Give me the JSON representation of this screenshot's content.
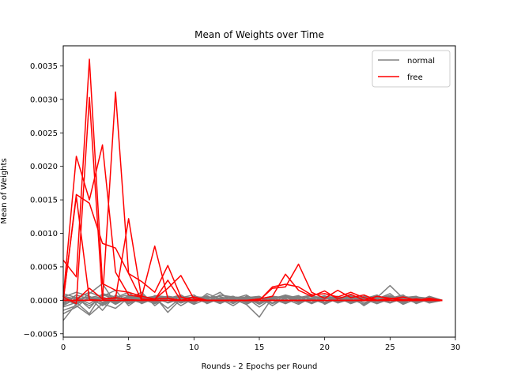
{
  "chart_data": {
    "type": "line",
    "title": "Mean of Weights over Time",
    "xlabel": "Rounds - 2 Epochs per Round",
    "ylabel": "Mean of Weights",
    "xlim": [
      0,
      30
    ],
    "ylim": [
      -0.00055,
      0.0038
    ],
    "xticks": [
      0,
      5,
      10,
      15,
      20,
      25,
      30
    ],
    "yticks": [
      -0.0005,
      0.0,
      0.0005,
      0.001,
      0.0015,
      0.002,
      0.0025,
      0.003,
      0.0035
    ],
    "ytick_labels": [
      "−0.0005",
      "0.0000",
      "0.0005",
      "0.0010",
      "0.0015",
      "0.0020",
      "0.0025",
      "0.0030",
      "0.0035"
    ],
    "grid": false,
    "legend_position": "top-right",
    "legend": [
      {
        "label": "normal",
        "color": "#808080"
      },
      {
        "label": "free",
        "color": "#ff0000"
      }
    ],
    "x": [
      0,
      1,
      2,
      3,
      4,
      5,
      6,
      7,
      8,
      9,
      10,
      11,
      12,
      13,
      14,
      15,
      16,
      17,
      18,
      19,
      20,
      21,
      22,
      23,
      24,
      25,
      26,
      27,
      28,
      29
    ],
    "series": [
      {
        "name": "normal",
        "color": "#808080",
        "values": [
          1e-05,
          -5e-05,
          3e-05,
          2e-05,
          -4e-05,
          6e-05,
          1e-05,
          -3e-05,
          4e-05,
          -2e-05,
          1e-05,
          5e-05,
          -2e-05,
          3e-05,
          1e-05,
          -4e-05,
          2e-05,
          6e-05,
          -3e-05,
          2e-05,
          4e-05,
          -2e-05,
          3e-05,
          -1e-05,
          5e-05,
          2e-05,
          -3e-05,
          4e-05,
          1e-05,
          0.0
        ]
      },
      {
        "name": "normal",
        "color": "#808080",
        "values": [
          -0.0001,
          -3e-05,
          -0.0002,
          0.0001,
          5e-05,
          -2e-05,
          8e-05,
          -4e-05,
          3e-05,
          6e-05,
          -5e-05,
          0.0001,
          2e-05,
          -8e-05,
          4e-05,
          -0.0001,
          3e-05,
          7e-05,
          -2e-05,
          9e-05,
          -6e-05,
          3e-05,
          5e-05,
          -4e-05,
          2e-05,
          0.0001,
          -5e-05,
          6e-05,
          -2e-05,
          0.0
        ]
      },
      {
        "name": "normal",
        "color": "#808080",
        "values": [
          -0.0003,
          -5e-05,
          0.0001,
          0.00025,
          -5e-05,
          3e-05,
          0.00012,
          -8e-05,
          6e-05,
          2e-05,
          4e-05,
          -3e-05,
          8e-05,
          5e-05,
          -4e-05,
          2e-05,
          6e-05,
          -5e-05,
          4e-05,
          8e-05,
          -3e-05,
          5e-05,
          2e-05,
          -6e-05,
          3e-05,
          7e-05,
          -2e-05,
          4e-05,
          3e-05,
          0.0
        ]
      },
      {
        "name": "normal",
        "color": "#808080",
        "values": [
          0.0001,
          4e-05,
          -5e-05,
          6e-05,
          0.00015,
          -8e-05,
          5e-05,
          3e-05,
          -0.00012,
          4e-05,
          8e-05,
          -5e-05,
          3e-05,
          6e-05,
          -2e-05,
          4e-05,
          -5e-05,
          3e-05,
          7e-05,
          -4e-05,
          2e-05,
          5e-05,
          -3e-05,
          6e-05,
          -4e-05,
          3e-05,
          8e-05,
          -5e-05,
          2e-05,
          0.0
        ]
      },
      {
        "name": "normal",
        "color": "#808080",
        "values": [
          -5e-05,
          8e-05,
          2e-05,
          -6e-05,
          4e-05,
          0.00012,
          -4e-05,
          7e-05,
          5e-05,
          -8e-05,
          3e-05,
          6e-05,
          -4e-05,
          2e-05,
          8e-05,
          -3e-05,
          5e-05,
          2e-05,
          -6e-05,
          4e-05,
          6e-05,
          -2e-05,
          4e-05,
          8e-05,
          -5e-05,
          2e-05,
          6e-05,
          -3e-05,
          5e-05,
          0.0
        ]
      },
      {
        "name": "normal",
        "color": "#808080",
        "values": [
          3e-05,
          -2e-05,
          6e-05,
          -4e-05,
          2e-05,
          5e-05,
          8e-05,
          -2e-05,
          4e-05,
          3e-05,
          -6e-05,
          2e-05,
          0.00012,
          -4e-05,
          3e-05,
          5e-05,
          -8e-05,
          4e-05,
          2e-05,
          -3e-05,
          6e-05,
          4e-05,
          -5e-05,
          2e-05,
          8e-05,
          -3e-05,
          4e-05,
          6e-05,
          -2e-05,
          0.0
        ]
      },
      {
        "name": "normal",
        "color": "#808080",
        "values": [
          -0.0002,
          -0.0001,
          5e-05,
          -0.00015,
          8e-05,
          -5e-05,
          3e-05,
          6e-05,
          -4e-05,
          2e-05,
          5e-05,
          -3e-05,
          4e-05,
          2e-05,
          -6e-05,
          3e-05,
          4e-05,
          -2e-05,
          6e-05,
          -5e-05,
          3e-05,
          2e-05,
          7e-05,
          -4e-05,
          3e-05,
          5e-05,
          -6e-05,
          2e-05,
          4e-05,
          0.0
        ]
      },
      {
        "name": "normal",
        "color": "#808080",
        "values": [
          6e-05,
          2e-05,
          -8e-05,
          4e-05,
          -3e-05,
          7e-05,
          -2e-05,
          5e-05,
          3e-05,
          -4e-05,
          6e-05,
          2e-05,
          -3e-05,
          5e-05,
          4e-05,
          -6e-05,
          3e-05,
          5e-05,
          -4e-05,
          2e-05,
          7e-05,
          -3e-05,
          4e-05,
          2e-05,
          -5e-05,
          6e-05,
          3e-05,
          -2e-05,
          5e-05,
          0.0
        ]
      },
      {
        "name": "normal",
        "color": "#808080",
        "values": [
          -8e-05,
          3e-05,
          0.00012,
          5e-05,
          -6e-05,
          4e-05,
          2e-05,
          -5e-05,
          6e-05,
          3e-05,
          -2e-05,
          7e-05,
          -4e-05,
          3e-05,
          5e-05,
          -3e-05,
          2e-05,
          8e-05,
          3e-05,
          -5e-05,
          4e-05,
          6e-05,
          -2e-05,
          3e-05,
          5e-05,
          -4e-05,
          3e-05,
          2e-05,
          -3e-05,
          0.0
        ]
      },
      {
        "name": "normal",
        "color": "#808080",
        "values": [
          2e-05,
          -6e-05,
          4e-05,
          8e-05,
          3e-05,
          -4e-05,
          6e-05,
          2e-05,
          -3e-05,
          5e-05,
          4e-05,
          -2e-05,
          3e-05,
          -5e-05,
          6e-05,
          2e-05,
          4e-05,
          -3e-05,
          5e-05,
          3e-05,
          -4e-05,
          2e-05,
          6e-05,
          4e-05,
          -2e-05,
          3e-05,
          5e-05,
          4e-05,
          -4e-05,
          0.0
        ]
      },
      {
        "name": "normal",
        "color": "#808080",
        "values": [
          -0.00015,
          -8e-05,
          -0.00022,
          -5e-05,
          -0.00012,
          4e-05,
          -3e-05,
          6e-05,
          -0.00018,
          2e-05,
          5e-05,
          -4e-05,
          8e-05,
          3e-05,
          -6e-05,
          -0.00025,
          4e-05,
          -3e-05,
          6e-05,
          2e-05,
          -5e-05,
          3e-05,
          7e-05,
          -8e-05,
          4e-05,
          0.00022,
          3e-05,
          -4e-05,
          5e-05,
          0.0
        ]
      },
      {
        "name": "normal",
        "color": "#808080",
        "values": [
          5e-05,
          0.00012,
          6e-05,
          -3e-05,
          4e-05,
          8e-05,
          -5e-05,
          3e-05,
          6e-05,
          -4e-05,
          2e-05,
          5e-05,
          3e-05,
          -2e-05,
          4e-05,
          6e-05,
          -4e-05,
          3e-05,
          5e-05,
          2e-05,
          -3e-05,
          4e-05,
          6e-05,
          2e-05,
          -5e-05,
          3e-05,
          4e-05,
          -2e-05,
          6e-05,
          0.0
        ]
      },
      {
        "name": "normal",
        "color": "#808080",
        "values": [
          -3e-05,
          5e-05,
          -0.00012,
          0.0001,
          -2e-05,
          6e-05,
          4e-05,
          -5e-05,
          3e-05,
          8e-05,
          -3e-05,
          4e-05,
          6e-05,
          -2e-05,
          3e-05,
          5e-05,
          -4e-05,
          7e-05,
          2e-05,
          -3e-05,
          5e-05,
          3e-05,
          -4e-05,
          6e-05,
          2e-05,
          -3e-05,
          4e-05,
          5e-05,
          -2e-05,
          0.0
        ]
      },
      {
        "name": "normal",
        "color": "#808080",
        "values": [
          8e-05,
          -4e-05,
          3e-05,
          5e-05,
          -2e-05,
          4e-05,
          6e-05,
          -3e-05,
          2e-05,
          5e-05,
          3e-05,
          -4e-05,
          2e-05,
          6e-05,
          -3e-05,
          4e-05,
          2e-05,
          -5e-05,
          3e-05,
          6e-05,
          4e-05,
          -2e-05,
          3e-05,
          5e-05,
          2e-05,
          -4e-05,
          6e-05,
          3e-05,
          2e-05,
          0.0
        ]
      },
      {
        "name": "normal",
        "color": "#808080",
        "values": [
          -6e-05,
          2e-05,
          5e-05,
          -8e-05,
          3e-05,
          2e-05,
          -4e-05,
          5e-05,
          4e-05,
          -2e-05,
          6e-05,
          3e-05,
          -5e-05,
          4e-05,
          2e-05,
          -3e-05,
          6e-05,
          4e-05,
          -2e-05,
          3e-05,
          5e-05,
          -4e-05,
          2e-05,
          4e-05,
          6e-05,
          -3e-05,
          2e-05,
          5e-05,
          3e-05,
          0.0
        ]
      },
      {
        "name": "free",
        "color": "#ff0000",
        "values": [
          0.0006,
          0.00035,
          0.0036,
          0.00025,
          0.00015,
          0.00012,
          6e-05,
          2e-05,
          3e-05,
          0.0,
          0.0,
          0.0,
          0.0,
          0.0,
          0.0,
          0.0,
          0.0,
          0.0,
          0.0,
          0.0,
          0.0,
          0.0,
          0.0,
          0.0,
          0.0,
          0.0,
          0.0,
          0.0,
          0.0,
          0.0
        ]
      },
      {
        "name": "free",
        "color": "#ff0000",
        "values": [
          5e-05,
          0.00215,
          0.0015,
          0.00232,
          0.00042,
          8e-05,
          5e-05,
          0.00081,
          3e-05,
          0.0,
          0.0,
          0.0,
          0.0,
          0.0,
          0.0,
          0.0,
          0.0,
          0.0,
          0.0,
          0.0,
          0.0,
          0.0,
          0.0,
          0.0,
          0.0,
          0.0,
          0.0,
          0.0,
          0.0,
          0.0
        ]
      },
      {
        "name": "free",
        "color": "#ff0000",
        "values": [
          0.0,
          0.00158,
          0.00145,
          0.00085,
          0.00078,
          0.0004,
          0.00028,
          0.00012,
          0.00052,
          5e-05,
          0.0,
          0.0,
          0.0,
          0.0,
          0.0,
          0.0,
          0.0,
          0.0,
          0.0,
          0.0,
          0.0,
          0.0,
          0.0,
          0.0,
          0.0,
          0.0,
          0.0,
          0.0,
          0.0,
          0.0
        ]
      },
      {
        "name": "free",
        "color": "#ff0000",
        "values": [
          0.0,
          0.00155,
          1e-05,
          0.0,
          0.00311,
          0.0004,
          0.0,
          0.0,
          0.0,
          0.0,
          0.0,
          0.0,
          0.0,
          0.0,
          0.0,
          0.0,
          0.0,
          0.0,
          0.0,
          0.0,
          0.0,
          0.0,
          0.0,
          0.0,
          0.0,
          0.0,
          0.0,
          0.0,
          0.0,
          0.0
        ]
      },
      {
        "name": "free",
        "color": "#ff0000",
        "values": [
          5e-05,
          -5e-05,
          0.00303,
          2e-05,
          3e-05,
          0.00122,
          2e-05,
          1e-05,
          0.0003,
          0.0,
          5e-05,
          0.0,
          0.0,
          0.0,
          0.0,
          0.0,
          0.0,
          0.0,
          0.0,
          0.0,
          0.0,
          0.0,
          0.0,
          0.0,
          0.0,
          0.0,
          0.0,
          0.0,
          0.0,
          0.0
        ]
      },
      {
        "name": "free",
        "color": "#ff0000",
        "values": [
          0.0,
          0.0,
          0.00018,
          2e-05,
          4e-05,
          1e-05,
          0.0,
          2e-05,
          0.00018,
          0.00037,
          2e-05,
          0.0,
          0.0,
          0.0,
          0.0,
          0.0,
          0.0,
          0.0,
          0.0,
          0.0,
          0.0,
          0.0,
          0.0,
          0.0,
          0.0,
          0.0,
          0.0,
          0.0,
          0.0,
          0.0
        ]
      },
      {
        "name": "free",
        "color": "#ff0000",
        "values": [
          0.0,
          0.0,
          0.0,
          0.0,
          0.0,
          0.0,
          0.0,
          0.0,
          0.0,
          0.0,
          0.0,
          0.0,
          0.0,
          0.0,
          0.0,
          0.0,
          0.00018,
          0.0002,
          0.00054,
          0.00012,
          3e-05,
          0.00015,
          4e-05,
          8e-05,
          0.0,
          2e-05,
          5e-05,
          0.0,
          3e-05,
          0.0
        ]
      },
      {
        "name": "free",
        "color": "#ff0000",
        "values": [
          0.0,
          0.0,
          0.0,
          0.0,
          0.0,
          0.0,
          0.0,
          0.0,
          0.0,
          0.0,
          0.0,
          0.0,
          0.0,
          0.0,
          0.0,
          2e-05,
          6e-05,
          0.00039,
          0.00015,
          6e-05,
          0.00014,
          2e-05,
          9e-05,
          0.0,
          6e-05,
          3e-05,
          1e-05,
          0.0,
          2e-05,
          0.0
        ]
      },
      {
        "name": "free",
        "color": "#ff0000",
        "values": [
          0.0,
          0.0,
          0.0,
          0.0,
          0.0,
          0.0,
          0.0,
          0.0,
          0.0,
          0.0,
          0.0,
          0.0,
          0.0,
          0.0,
          0.0,
          0.0,
          0.0002,
          0.00024,
          0.0002,
          8e-05,
          0.0001,
          5e-05,
          0.00012,
          4e-05,
          0.0,
          3e-05,
          0.0,
          2e-05,
          0.0,
          0.0
        ]
      }
    ]
  }
}
